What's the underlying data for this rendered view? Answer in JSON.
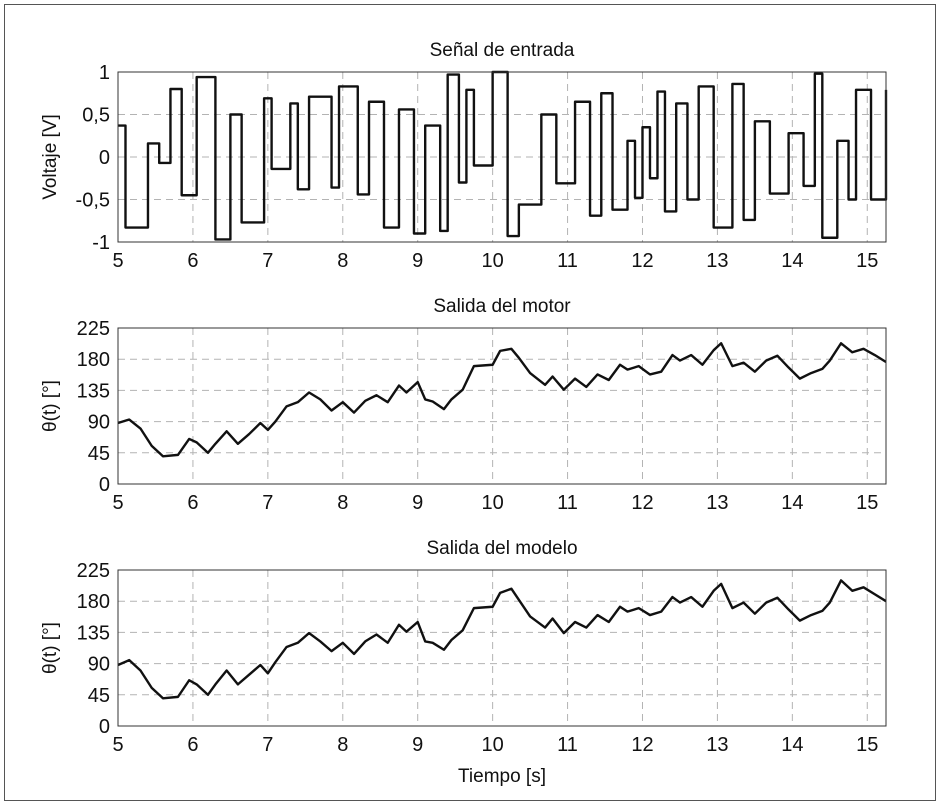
{
  "chart_data": [
    {
      "type": "line",
      "title": "Señal de entrada",
      "xlabel": "",
      "ylabel": "Voltaje [V]",
      "xlim": [
        5,
        15.25
      ],
      "ylim": [
        -1,
        1
      ],
      "xticks": [
        "5",
        "6",
        "7",
        "8",
        "9",
        "10",
        "11",
        "12",
        "13",
        "14",
        "15"
      ],
      "yticks": [
        "-1",
        "-0,5",
        "0",
        "0,5",
        "1"
      ],
      "ytick_values": [
        -1,
        -0.5,
        0,
        0.5,
        1
      ],
      "grid": true,
      "step": true,
      "series": [
        {
          "x": [
            5,
            5.1,
            5.4,
            5.55,
            5.7,
            5.85,
            6.05,
            6.3,
            6.5,
            6.65,
            6.95,
            7.05,
            7.3,
            7.4,
            7.55,
            7.85,
            7.95,
            8.2,
            8.35,
            8.55,
            8.75,
            8.95,
            9.1,
            9.3,
            9.4,
            9.55,
            9.65,
            9.75,
            10.0,
            10.2,
            10.35,
            10.65,
            10.85,
            11.1,
            11.3,
            11.45,
            11.6,
            11.8,
            11.9,
            12.0,
            12.1,
            12.2,
            12.3,
            12.45,
            12.6,
            12.75,
            12.95,
            13.2,
            13.35,
            13.5,
            13.7,
            13.95,
            14.15,
            14.3,
            14.4,
            14.6,
            14.75,
            14.85,
            15.05,
            15.25
          ],
          "y": [
            0.37,
            -0.83,
            0.16,
            -0.07,
            0.8,
            -0.45,
            0.94,
            -0.97,
            0.5,
            -0.77,
            0.69,
            -0.14,
            0.63,
            -0.38,
            0.71,
            -0.36,
            0.83,
            -0.44,
            0.65,
            -0.83,
            0.56,
            -0.9,
            0.37,
            -0.87,
            0.97,
            -0.3,
            0.79,
            -0.1,
            1.0,
            -0.93,
            -0.56,
            0.5,
            -0.31,
            0.65,
            -0.69,
            0.75,
            -0.62,
            0.19,
            -0.48,
            0.35,
            -0.25,
            0.77,
            -0.64,
            0.63,
            -0.5,
            0.83,
            -0.83,
            0.86,
            -0.74,
            0.42,
            -0.43,
            0.28,
            -0.34,
            0.98,
            -0.95,
            0.19,
            -0.5,
            0.79,
            -0.5,
            0.79
          ]
        }
      ]
    },
    {
      "type": "line",
      "title": "Salida del motor",
      "xlabel": "",
      "ylabel": "θ(t) [°]",
      "xlim": [
        5,
        15.25
      ],
      "ylim": [
        0,
        225
      ],
      "xticks": [
        "5",
        "6",
        "7",
        "8",
        "9",
        "10",
        "11",
        "12",
        "13",
        "14",
        "15"
      ],
      "yticks": [
        "0",
        "45",
        "90",
        "135",
        "180",
        "225"
      ],
      "ytick_values": [
        0,
        45,
        90,
        135,
        180,
        225
      ],
      "grid": true,
      "series": [
        {
          "x": [
            5.0,
            5.15,
            5.3,
            5.45,
            5.6,
            5.8,
            5.95,
            6.05,
            6.2,
            6.3,
            6.45,
            6.6,
            6.75,
            6.9,
            7.0,
            7.1,
            7.25,
            7.4,
            7.55,
            7.7,
            7.85,
            8.0,
            8.15,
            8.3,
            8.45,
            8.6,
            8.75,
            8.85,
            9.0,
            9.1,
            9.2,
            9.35,
            9.45,
            9.6,
            9.75,
            10.0,
            10.1,
            10.25,
            10.35,
            10.5,
            10.7,
            10.8,
            10.95,
            11.1,
            11.25,
            11.4,
            11.55,
            11.7,
            11.8,
            11.95,
            12.1,
            12.25,
            12.4,
            12.5,
            12.65,
            12.8,
            12.95,
            13.05,
            13.2,
            13.35,
            13.5,
            13.65,
            13.8,
            13.95,
            14.1,
            14.25,
            14.4,
            14.5,
            14.65,
            14.8,
            14.95,
            15.1,
            15.25
          ],
          "y": [
            88,
            93,
            80,
            55,
            40,
            42,
            65,
            60,
            45,
            58,
            76,
            58,
            72,
            88,
            78,
            90,
            112,
            118,
            132,
            122,
            106,
            118,
            103,
            120,
            128,
            118,
            142,
            132,
            147,
            122,
            119,
            108,
            122,
            136,
            170,
            172,
            192,
            195,
            182,
            160,
            143,
            155,
            136,
            152,
            140,
            158,
            150,
            172,
            165,
            170,
            158,
            162,
            186,
            178,
            186,
            172,
            193,
            203,
            170,
            175,
            162,
            178,
            185,
            168,
            152,
            160,
            166,
            178,
            203,
            190,
            195,
            186,
            176
          ]
        }
      ]
    },
    {
      "type": "line",
      "title": "Salida del modelo",
      "xlabel": "Tiempo [s]",
      "ylabel": "θ(t) [°]",
      "xlim": [
        5,
        15.25
      ],
      "ylim": [
        0,
        225
      ],
      "xticks": [
        "5",
        "6",
        "7",
        "8",
        "9",
        "10",
        "11",
        "12",
        "13",
        "14",
        "15"
      ],
      "yticks": [
        "0",
        "45",
        "90",
        "135",
        "180",
        "225"
      ],
      "ytick_values": [
        0,
        45,
        90,
        135,
        180,
        225
      ],
      "grid": true,
      "series": [
        {
          "x": [
            5.0,
            5.15,
            5.3,
            5.45,
            5.6,
            5.8,
            5.95,
            6.05,
            6.2,
            6.3,
            6.45,
            6.6,
            6.75,
            6.9,
            7.0,
            7.1,
            7.25,
            7.4,
            7.55,
            7.7,
            7.85,
            8.0,
            8.15,
            8.3,
            8.45,
            8.6,
            8.75,
            8.85,
            9.0,
            9.1,
            9.2,
            9.35,
            9.45,
            9.6,
            9.75,
            10.0,
            10.1,
            10.25,
            10.35,
            10.5,
            10.7,
            10.8,
            10.95,
            11.1,
            11.25,
            11.4,
            11.55,
            11.7,
            11.8,
            11.95,
            12.1,
            12.25,
            12.4,
            12.5,
            12.65,
            12.8,
            12.95,
            13.05,
            13.2,
            13.35,
            13.5,
            13.65,
            13.8,
            13.95,
            14.1,
            14.25,
            14.4,
            14.5,
            14.65,
            14.8,
            14.95,
            15.1,
            15.25
          ],
          "y": [
            88,
            95,
            80,
            55,
            40,
            42,
            66,
            60,
            45,
            60,
            80,
            60,
            74,
            88,
            76,
            92,
            114,
            120,
            134,
            122,
            108,
            120,
            104,
            122,
            132,
            120,
            146,
            136,
            150,
            122,
            120,
            110,
            124,
            138,
            170,
            172,
            192,
            198,
            182,
            158,
            142,
            155,
            134,
            150,
            142,
            160,
            150,
            172,
            165,
            170,
            160,
            165,
            186,
            178,
            186,
            172,
            195,
            205,
            170,
            178,
            162,
            178,
            185,
            168,
            152,
            160,
            166,
            178,
            210,
            195,
            200,
            190,
            180
          ]
        }
      ]
    }
  ]
}
